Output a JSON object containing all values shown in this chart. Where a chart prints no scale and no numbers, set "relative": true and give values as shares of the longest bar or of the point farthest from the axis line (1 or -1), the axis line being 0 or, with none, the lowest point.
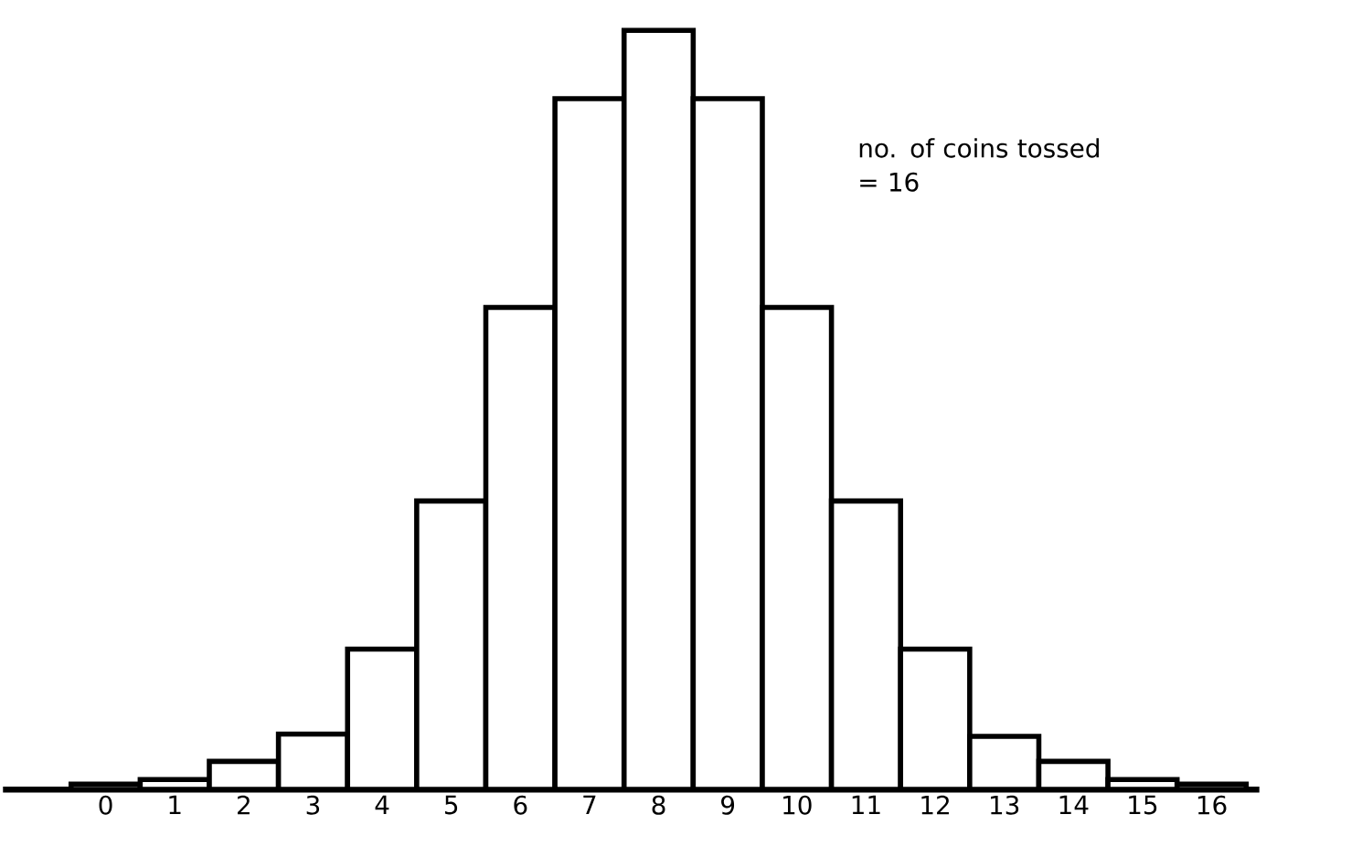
{
  "chart_data": {
    "type": "bar",
    "relative": true,
    "categories": [
      "0",
      "1",
      "2",
      "3",
      "4",
      "5",
      "6",
      "7",
      "8",
      "9",
      "10",
      "11",
      "12",
      "13",
      "14",
      "15",
      "16"
    ],
    "values": [
      0.007,
      0.013,
      0.037,
      0.073,
      0.185,
      0.38,
      0.635,
      0.91,
      1.0,
      0.91,
      0.635,
      0.38,
      0.185,
      0.07,
      0.037,
      0.013,
      0.007
    ],
    "color": "#ffffff",
    "annotations": [
      "no. of coins tossed = 16"
    ]
  }
}
